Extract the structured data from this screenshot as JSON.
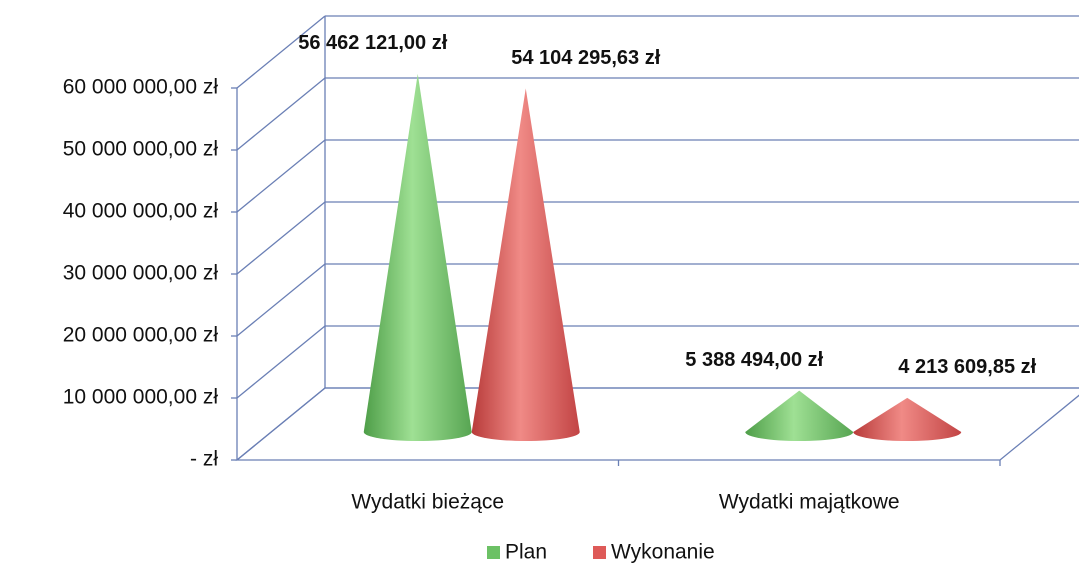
{
  "chart_data": {
    "type": "cone3d",
    "categories": [
      "Wydatki bieżące",
      "Wydatki majątkowe"
    ],
    "series": [
      {
        "name": "Plan",
        "color": "#6cc165",
        "values": [
          56462121.0,
          5388494.0
        ],
        "value_labels": [
          "56 462 121,00 zł",
          "5 388 494,00 zł"
        ]
      },
      {
        "name": "Wykonanie",
        "color": "#de5a58",
        "values": [
          54104295.63,
          4213609.85
        ],
        "value_labels": [
          "54 104 295,63 zł",
          "4 213 609,85 zł"
        ]
      }
    ],
    "ylim": [
      0,
      60000000
    ],
    "yticks": [
      {
        "value": 0,
        "label": "-  zł"
      },
      {
        "value": 10000000,
        "label": "10 000 000,00 zł"
      },
      {
        "value": 20000000,
        "label": "20 000 000,00 zł"
      },
      {
        "value": 30000000,
        "label": "30 000 000,00 zł"
      },
      {
        "value": 40000000,
        "label": "40 000 000,00 zł"
      },
      {
        "value": 50000000,
        "label": "50 000 000,00 zł"
      },
      {
        "value": 60000000,
        "label": "60 000 000,00 zł"
      }
    ],
    "grid": true,
    "legend": "bottom"
  }
}
